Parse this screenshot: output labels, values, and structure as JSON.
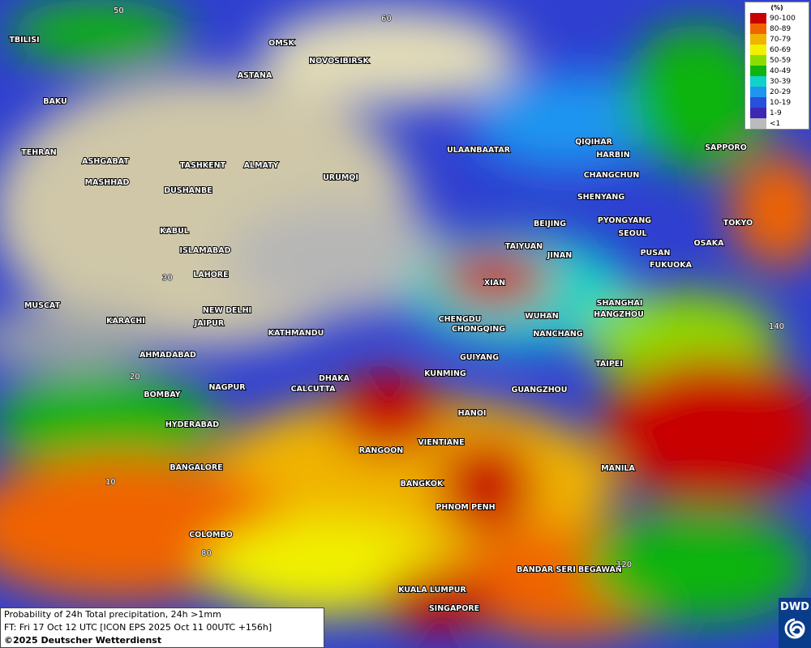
{
  "map": {
    "cities": [
      "TBILISI",
      "BAKU",
      "TEHRAN",
      "ASHGABAT",
      "MASHHAD",
      "TASHKENT",
      "ALMATY",
      "URUMQI",
      "DUSHANBE",
      "KABUL",
      "ISLAMABAD",
      "LAHORE",
      "NEW DELHI",
      "JAIPUR",
      "MUSCAT",
      "KARACHI",
      "AHMADABAD",
      "KATHMANDU",
      "DHAKA",
      "CALCUTTA",
      "NAGPUR",
      "BOMBAY",
      "HYDERABAD",
      "BANGALORE",
      "COLOMBO",
      "OMSK",
      "NOVOSIBIRSK",
      "ASTANA",
      "ULAANBAATAR",
      "QIQIHAR",
      "HARBIN",
      "CHANGCHUN",
      "SHENYANG",
      "BEIJING",
      "PYONGYANG",
      "SEOUL",
      "TAIYUAN",
      "JINAN",
      "PUSAN",
      "FUKUOKA",
      "OSAKA",
      "TOKYO",
      "SAPPORO",
      "XIAN",
      "SHANGHAI",
      "HANGZHOU",
      "WUHAN",
      "CHENGDU",
      "CHONGQING",
      "NANCHANG",
      "TAIPEI",
      "GUIYANG",
      "KUNMING",
      "GUANGZHOU",
      "HANOI",
      "VIENTIANE",
      "RANGOON",
      "BANGKOK",
      "PHNOM PENH",
      "MANILA",
      "BANDAR SERI BEGAWAN",
      "KUALA LUMPUR",
      "SINGAPORE"
    ],
    "grid_labels": [
      "50",
      "60",
      "30",
      "20",
      "10",
      "140",
      "80",
      "120"
    ]
  },
  "legend": {
    "title": "(%)",
    "items": [
      {
        "label": "90-100",
        "color": "#c80000"
      },
      {
        "label": "80-89",
        "color": "#f06400"
      },
      {
        "label": "70-79",
        "color": "#f0b400"
      },
      {
        "label": "60-69",
        "color": "#f0f000"
      },
      {
        "label": "50-59",
        "color": "#8cdc00"
      },
      {
        "label": "40-49",
        "color": "#10b410"
      },
      {
        "label": "30-39",
        "color": "#10d2c8"
      },
      {
        "label": "20-29",
        "color": "#1e96f0"
      },
      {
        "label": "10-19",
        "color": "#2850dc"
      },
      {
        "label": "1-9",
        "color": "#3c28b4"
      },
      {
        "label": "<1",
        "color": "#bbbbbb"
      }
    ]
  },
  "caption": {
    "line1": "Probability of 24h Total precipitation, 24h >1mm",
    "line2": "FT: Fri 17 Oct 12 UTC [ICON EPS 2025 Oct 11 00UTC +156h]",
    "line3": "©2025 Deutscher Wetterdienst"
  },
  "logo": "DWD"
}
